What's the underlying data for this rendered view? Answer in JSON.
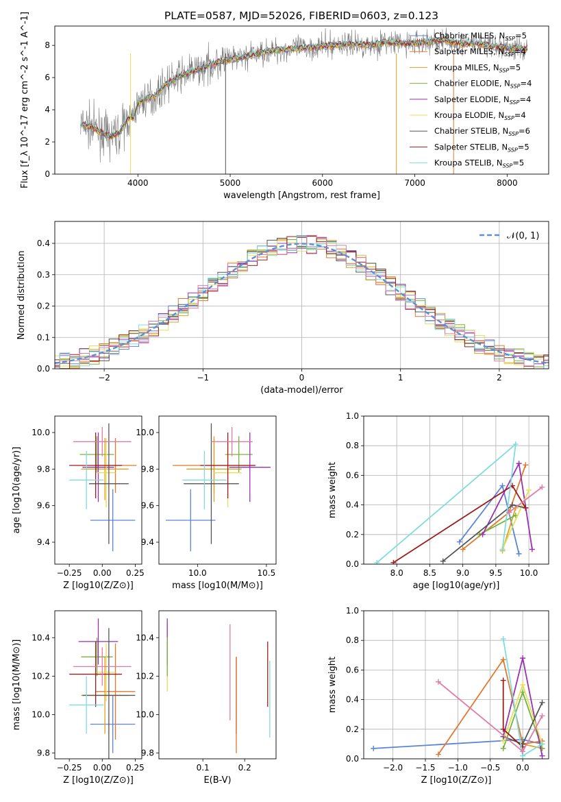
{
  "figure": {
    "title": "PLATE=0587, MJD=52026, FIBERID=0603, z=0.123"
  },
  "colors": {
    "Chabrier MILES": "#5b83d6",
    "Salpeter MILES": "#e0772f",
    "Kroupa MILES": "#e0a020",
    "Chabrier ELODIE": "#76b33a",
    "Salpeter ELODIE": "#9a2fb2",
    "Kroupa ELODIE": "#e3e05a",
    "Chabrier STELIB": "#555555",
    "Salpeter STELIB": "#9e1b1b",
    "Kroupa STELIB": "#7fdcdc",
    "extra": "#e07aa8"
  },
  "chart_data": [
    {
      "id": "spectrum",
      "type": "line",
      "title": "PLATE=0587, MJD=52026, FIBERID=0603, z=0.123",
      "xlabel": "wavelength [Angstrom, rest frame]",
      "ylabel": "Flux [f_λ 10^-17 erg cm^-2 s^-1 A^-1]",
      "xlim": [
        3100,
        8450
      ],
      "ylim": [
        0,
        9.2
      ],
      "xticks": [
        4000,
        5000,
        6000,
        7000,
        8000
      ],
      "yticks": [
        0,
        2,
        4,
        6,
        8
      ],
      "legend_position": "upper right",
      "legend": [
        {
          "label": "Chabrier MILES, N_SSP=5",
          "color": "#5b83d6"
        },
        {
          "label": "Salpeter MILES, N_SSP=4",
          "color": "#e0772f"
        },
        {
          "label": "Kroupa MILES, N_SSP=5",
          "color": "#e0a020"
        },
        {
          "label": "Chabrier ELODIE, N_SSP=4",
          "color": "#76b33a"
        },
        {
          "label": "Salpeter ELODIE, N_SSP=4",
          "color": "#9a2fb2"
        },
        {
          "label": "Kroupa ELODIE, N_SSP=4",
          "color": "#e3e05a"
        },
        {
          "label": "Chabrier STELIB, N_SSP=6",
          "color": "#555555"
        },
        {
          "label": "Salpeter STELIB, N_SSP=5",
          "color": "#9e1b1b"
        },
        {
          "label": "Kroupa STELIB, N_SSP=5",
          "color": "#7fdcdc"
        }
      ],
      "model_curve": {
        "x": [
          3380,
          3500,
          3600,
          3700,
          3800,
          3900,
          3950,
          4000,
          4100,
          4200,
          4300,
          4400,
          4500,
          4700,
          4900,
          5100,
          5300,
          5500,
          5700,
          5900,
          6100,
          6300,
          6500,
          6700,
          6900,
          7100,
          7300,
          7500,
          7700,
          7900,
          8100,
          8200
        ],
        "y": [
          3.1,
          2.9,
          2.6,
          2.3,
          2.6,
          3.5,
          3.5,
          4.4,
          4.7,
          4.9,
          5.6,
          5.9,
          6.2,
          6.6,
          7.0,
          7.2,
          7.5,
          7.7,
          7.8,
          7.9,
          8.0,
          8.1,
          8.0,
          8.2,
          8.1,
          8.2,
          8.3,
          8.1,
          8.1,
          7.9,
          7.8,
          7.8
        ]
      }
    },
    {
      "id": "residuals",
      "type": "line",
      "xlabel": "(data-model)/error",
      "ylabel": "Normed distribution",
      "xlim": [
        -2.5,
        2.5
      ],
      "ylim": [
        0,
        0.47
      ],
      "xticks": [
        -2,
        -1,
        0,
        1,
        2
      ],
      "yticks": [
        0.0,
        0.1,
        0.2,
        0.3,
        0.4
      ],
      "grid": true,
      "legend_position": "upper right",
      "reference": {
        "label": "𝒩(0, 1)",
        "color": "#5b8fd6",
        "style": "dashed",
        "mean": 0,
        "sigma": 1
      }
    },
    {
      "id": "age-vs-Z",
      "type": "scatter",
      "xlabel": "Z [log10(Z/Z⊙)]",
      "ylabel": "age [log10(age/yr)]",
      "xlim": [
        -0.36,
        0.3
      ],
      "ylim": [
        9.28,
        10.09
      ],
      "xticks": [
        -0.25,
        0,
        0.25
      ],
      "xticklabels": [
        "−0.25",
        "0.00",
        "0.25"
      ],
      "yticks": [
        9.4,
        9.6,
        9.8,
        10.0
      ],
      "points": [
        {
          "x": 0.08,
          "y": 9.52,
          "xerr": 0.17,
          "yerr": 0.17,
          "color": "#5b83d6"
        },
        {
          "x": 0.1,
          "y": 9.82,
          "xerr": 0.16,
          "yerr": 0.15,
          "color": "#e0772f"
        },
        {
          "x": 0.02,
          "y": 9.8,
          "xerr": 0.18,
          "yerr": 0.17,
          "color": "#e0a020"
        },
        {
          "x": -0.04,
          "y": 9.88,
          "xerr": 0.13,
          "yerr": 0.1,
          "color": "#76b33a"
        },
        {
          "x": -0.03,
          "y": 9.81,
          "xerr": 0.12,
          "yerr": 0.19,
          "color": "#9a2fb2"
        },
        {
          "x": 0.03,
          "y": 9.78,
          "xerr": 0.07,
          "yerr": 0.19,
          "color": "#e3e05a"
        },
        {
          "x": 0.05,
          "y": 9.72,
          "xerr": 0.15,
          "yerr": 0.33,
          "color": "#555555"
        },
        {
          "x": -0.05,
          "y": 9.82,
          "xerr": 0.2,
          "yerr": 0.18,
          "color": "#9e1b1b"
        },
        {
          "x": -0.12,
          "y": 9.74,
          "xerr": 0.13,
          "yerr": 0.16,
          "color": "#7fdcdc"
        },
        {
          "x": 0.0,
          "y": 9.95,
          "xerr": 0.22,
          "yerr": 0.08,
          "color": "#e07aa8"
        }
      ]
    },
    {
      "id": "age-vs-mass",
      "type": "scatter",
      "xlabel": "mass [log10(M/M⊙)]",
      "xlim": [
        9.72,
        10.57
      ],
      "ylim": [
        9.28,
        10.09
      ],
      "xticks": [
        10.0,
        10.5
      ],
      "yticks": [
        9.4,
        9.6,
        9.8,
        10.0
      ],
      "points": [
        {
          "x": 9.95,
          "y": 9.52,
          "xerr": 0.18,
          "yerr": 0.17,
          "color": "#5b83d6"
        },
        {
          "x": 10.12,
          "y": 9.82,
          "xerr": 0.3,
          "yerr": 0.15,
          "color": "#e0772f"
        },
        {
          "x": 10.12,
          "y": 9.8,
          "xerr": 0.2,
          "yerr": 0.18,
          "color": "#e0a020"
        },
        {
          "x": 10.3,
          "y": 9.88,
          "xerr": 0.1,
          "yerr": 0.1,
          "color": "#76b33a"
        },
        {
          "x": 10.38,
          "y": 9.81,
          "xerr": 0.15,
          "yerr": 0.19,
          "color": "#9a2fb2"
        },
        {
          "x": 10.22,
          "y": 9.78,
          "xerr": 0.1,
          "yerr": 0.19,
          "color": "#e3e05a"
        },
        {
          "x": 10.1,
          "y": 9.72,
          "xerr": 0.2,
          "yerr": 0.33,
          "color": "#555555"
        },
        {
          "x": 10.22,
          "y": 9.82,
          "xerr": 0.2,
          "yerr": 0.18,
          "color": "#9e1b1b"
        },
        {
          "x": 10.05,
          "y": 9.74,
          "xerr": 0.16,
          "yerr": 0.16,
          "color": "#7fdcdc"
        },
        {
          "x": 10.25,
          "y": 9.95,
          "xerr": 0.15,
          "yerr": 0.08,
          "color": "#e07aa8"
        }
      ]
    },
    {
      "id": "weight-vs-age",
      "type": "line",
      "xlabel": "age [log10(age/yr)]",
      "ylabel": "mass weight",
      "xlim": [
        7.5,
        10.3
      ],
      "ylim": [
        0,
        1.0
      ],
      "xticks": [
        8.0,
        8.5,
        9.0,
        9.5,
        10.0
      ],
      "yticks": [
        0.0,
        0.2,
        0.4,
        0.6,
        0.8,
        1.0
      ],
      "grid": true,
      "series": [
        {
          "color": "#5b83d6",
          "x": [
            8.95,
            9.6,
            9.85
          ],
          "y": [
            0.15,
            0.53,
            0.07
          ]
        },
        {
          "color": "#e0772f",
          "x": [
            9.0,
            9.7,
            9.95
          ],
          "y": [
            0.1,
            0.35,
            0.67
          ]
        },
        {
          "color": "#e0a020",
          "x": [
            9.6,
            9.8
          ],
          "y": [
            0.09,
            0.38
          ]
        },
        {
          "color": "#76b33a",
          "x": [
            9.25,
            9.8
          ],
          "y": [
            0.2,
            0.33
          ]
        },
        {
          "color": "#9a2fb2",
          "x": [
            9.3,
            9.85,
            10.05
          ],
          "y": [
            0.2,
            0.68,
            0.1
          ]
        },
        {
          "color": "#e3e05a",
          "x": [
            9.6,
            10.0
          ],
          "y": [
            0.1,
            0.5
          ]
        },
        {
          "color": "#555555",
          "x": [
            8.7,
            9.75,
            9.95
          ],
          "y": [
            0.02,
            0.4,
            0.38
          ]
        },
        {
          "color": "#9e1b1b",
          "x": [
            7.95,
            9.75,
            9.95
          ],
          "y": [
            0.01,
            0.53,
            0.38
          ]
        },
        {
          "color": "#7fdcdc",
          "x": [
            7.7,
            9.8,
            9.6
          ],
          "y": [
            0.01,
            0.81,
            0.1
          ]
        },
        {
          "color": "#e07aa8",
          "x": [
            9.7,
            10.2
          ],
          "y": [
            0.35,
            0.52
          ]
        }
      ]
    },
    {
      "id": "mass-vs-Z",
      "type": "scatter",
      "xlabel": "Z [log10(Z/Z⊙)]",
      "ylabel": "mass [log10(M/M⊙)]",
      "xlim": [
        -0.36,
        0.3
      ],
      "ylim": [
        9.77,
        10.54
      ],
      "xticks": [
        -0.25,
        0,
        0.25
      ],
      "xticklabels": [
        "−0.25",
        "0.00",
        "0.25"
      ],
      "yticks": [
        9.8,
        10.0,
        10.2,
        10.4
      ],
      "points": [
        {
          "x": 0.08,
          "y": 9.95,
          "xerr": 0.17,
          "yerr": 0.15,
          "color": "#5b83d6"
        },
        {
          "x": 0.1,
          "y": 10.12,
          "xerr": 0.15,
          "yerr": 0.25,
          "color": "#e0772f"
        },
        {
          "x": 0.02,
          "y": 10.1,
          "xerr": 0.18,
          "yerr": 0.2,
          "color": "#e0a020"
        },
        {
          "x": -0.04,
          "y": 10.3,
          "xerr": 0.12,
          "yerr": 0.1,
          "color": "#76b33a"
        },
        {
          "x": -0.03,
          "y": 10.38,
          "xerr": 0.15,
          "yerr": 0.12,
          "color": "#9a2fb2"
        },
        {
          "x": 0.03,
          "y": 10.22,
          "xerr": 0.07,
          "yerr": 0.15,
          "color": "#e3e05a"
        },
        {
          "x": 0.05,
          "y": 10.1,
          "xerr": 0.2,
          "yerr": 0.35,
          "color": "#555555"
        },
        {
          "x": -0.05,
          "y": 10.21,
          "xerr": 0.2,
          "yerr": 0.17,
          "color": "#9e1b1b"
        },
        {
          "x": -0.12,
          "y": 10.05,
          "xerr": 0.13,
          "yerr": 0.15,
          "color": "#7fdcdc"
        },
        {
          "x": 0.0,
          "y": 10.25,
          "xerr": 0.22,
          "yerr": 0.1,
          "color": "#e07aa8"
        }
      ]
    },
    {
      "id": "mass-vs-ebv",
      "type": "scatter",
      "xlabel": "E(B-V)",
      "xlim": [
        -0.005,
        0.275
      ],
      "ylim": [
        9.77,
        10.54
      ],
      "xticks": [
        0.1,
        0.2
      ],
      "yticks": [
        9.8,
        10.0,
        10.2,
        10.4
      ],
      "points": [
        {
          "x": 0.015,
          "y": 10.3,
          "yerr": 0.18,
          "color": "#e3e05a"
        },
        {
          "x": 0.015,
          "y": 10.38,
          "yerr": 0.12,
          "color": "#9a2fb2"
        },
        {
          "x": 0.015,
          "y": 10.3,
          "yerr": 0.1,
          "color": "#76b33a"
        },
        {
          "x": 0.165,
          "y": 10.22,
          "yerr": 0.25,
          "color": "#e07aa8"
        },
        {
          "x": 0.18,
          "y": 10.1,
          "yerr": 0.2,
          "color": "#555555"
        },
        {
          "x": 0.18,
          "y": 10.05,
          "yerr": 0.25,
          "color": "#e0772f"
        },
        {
          "x": 0.255,
          "y": 10.21,
          "yerr": 0.17,
          "color": "#9e1b1b"
        },
        {
          "x": 0.26,
          "y": 10.08,
          "yerr": 0.2,
          "color": "#7fdcdc"
        }
      ]
    },
    {
      "id": "weight-vs-Z",
      "type": "line",
      "xlabel": "Z [log10(Z/Z⊙)]",
      "ylabel": "mass weight",
      "xlim": [
        -2.45,
        0.4
      ],
      "ylim": [
        0,
        1.0
      ],
      "xticks": [
        -2.0,
        -1.5,
        -1.0,
        -0.5,
        0.0
      ],
      "xticklabels": [
        "−2.0",
        "−1.5",
        "−1.0",
        "−0.5",
        "0.0"
      ],
      "yticks": [
        0.0,
        0.2,
        0.4,
        0.6,
        0.8,
        1.0
      ],
      "grid": true,
      "series": [
        {
          "color": "#5b83d6",
          "x": [
            -2.3,
            0.0,
            0.3
          ],
          "y": [
            0.07,
            0.13,
            0.1
          ]
        },
        {
          "color": "#e0772f",
          "x": [
            -1.3,
            -0.3,
            0.0,
            0.3
          ],
          "y": [
            0.03,
            0.67,
            0.1,
            0.12
          ]
        },
        {
          "color": "#e0a020",
          "x": [
            0.0,
            0.3
          ],
          "y": [
            0.1,
            0.07
          ]
        },
        {
          "color": "#76b33a",
          "x": [
            -0.3,
            0.0,
            0.3
          ],
          "y": [
            0.07,
            0.45,
            0.07
          ]
        },
        {
          "color": "#9a2fb2",
          "x": [
            -0.3,
            0.0,
            0.3
          ],
          "y": [
            0.15,
            0.68,
            0.02
          ]
        },
        {
          "color": "#e3e05a",
          "x": [
            -0.3,
            0.0,
            0.3
          ],
          "y": [
            0.12,
            0.5,
            0.1
          ]
        },
        {
          "color": "#555555",
          "x": [
            -0.3,
            0.0,
            0.3
          ],
          "y": [
            0.15,
            0.1,
            0.38
          ]
        },
        {
          "color": "#9e1b1b",
          "x": [
            -0.3,
            -0.3,
            0.0
          ],
          "y": [
            0.53,
            0.2,
            0.08
          ]
        },
        {
          "color": "#7fdcdc",
          "x": [
            -0.3,
            0.0,
            0.3
          ],
          "y": [
            0.81,
            0.02,
            0.1
          ]
        },
        {
          "color": "#e07aa8",
          "x": [
            -1.3,
            0.0,
            0.3
          ],
          "y": [
            0.52,
            0.05,
            0.29
          ]
        }
      ]
    }
  ]
}
